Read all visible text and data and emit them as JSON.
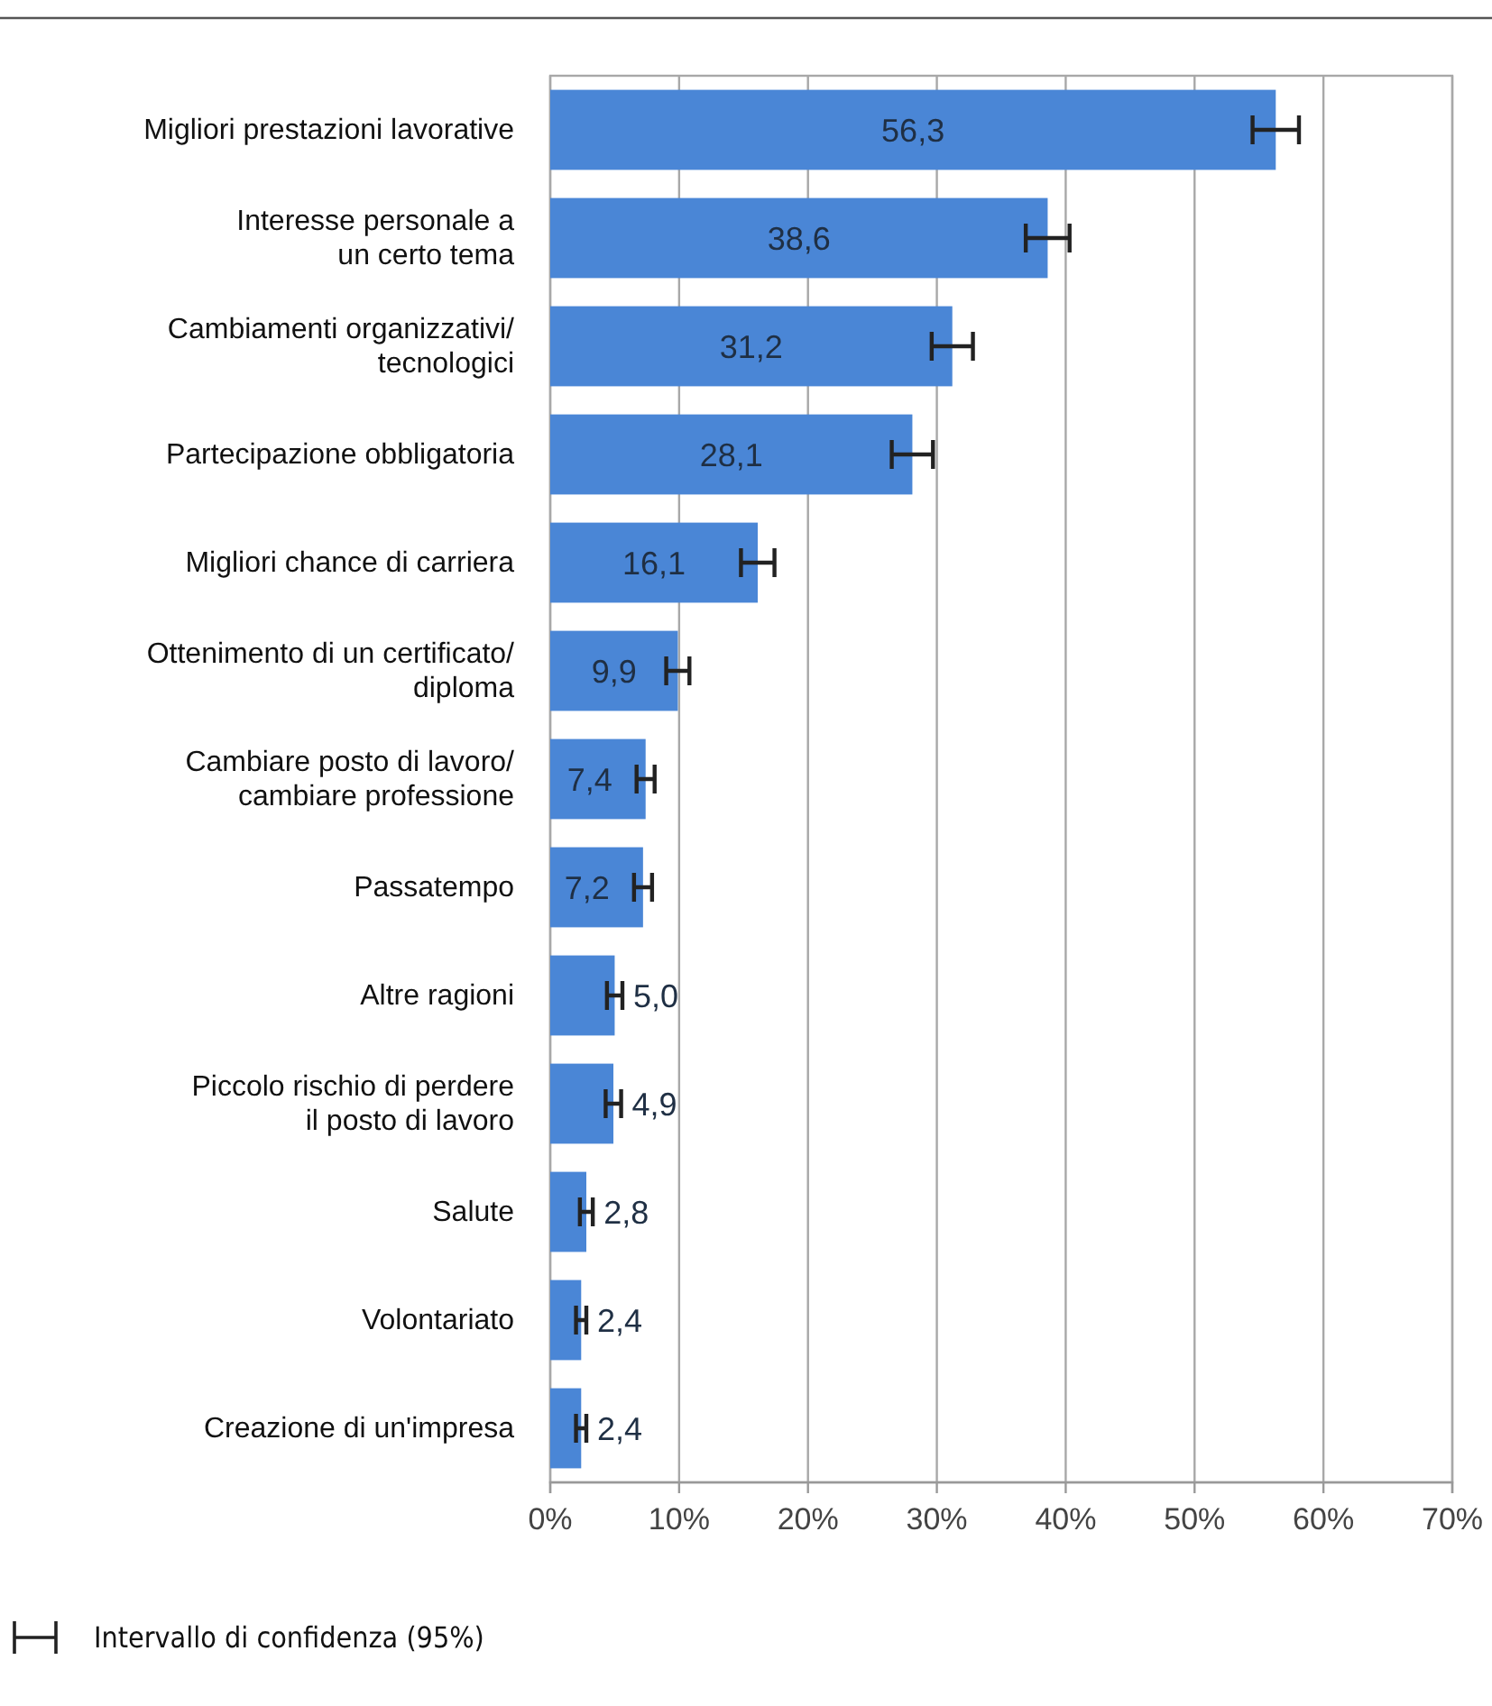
{
  "chart_data": {
    "type": "bar",
    "orientation": "horizontal",
    "categories": [
      "Migliori prestazioni lavorative",
      "Interesse personale a\nun certo tema",
      "Cambiamenti organizzativi/\ntecnologici",
      "Partecipazione obbligatoria",
      "Migliori chance di carriera",
      "Ottenimento di un certificato/\ndiploma",
      "Cambiare posto di lavoro/\ncambiare professione",
      "Passatempo",
      "Altre ragioni",
      "Piccolo rischio di perdere\nil posto di lavoro",
      "Salute",
      "Volontariato",
      "Creazione di un'impresa"
    ],
    "values": [
      56.3,
      38.6,
      31.2,
      28.1,
      16.1,
      9.9,
      7.4,
      7.2,
      5.0,
      4.9,
      2.8,
      2.4,
      2.4
    ],
    "errors": [
      1.8,
      1.7,
      1.6,
      1.6,
      1.3,
      0.9,
      0.7,
      0.7,
      0.6,
      0.6,
      0.5,
      0.4,
      0.4
    ],
    "value_labels": [
      "56,3",
      "38,6",
      "31,2",
      "28,1",
      "16,1",
      "9,9",
      "7,4",
      "7,2",
      "5,0",
      "4,9",
      "2,8",
      "2,4",
      "2,4"
    ],
    "color": "#4a86d6",
    "xlim": [
      0,
      70
    ],
    "xticks": [
      {
        "value": 0,
        "label": "0%"
      },
      {
        "value": 10,
        "label": "10%"
      },
      {
        "value": 20,
        "label": "20%"
      },
      {
        "value": 30,
        "label": "30%"
      },
      {
        "value": 40,
        "label": "40%"
      },
      {
        "value": 50,
        "label": "50%"
      },
      {
        "value": 60,
        "label": "60%"
      },
      {
        "value": 70,
        "label": "70%"
      }
    ],
    "grid": "x",
    "annotations": [
      "Intervallo di confidenza (95%)"
    ]
  }
}
